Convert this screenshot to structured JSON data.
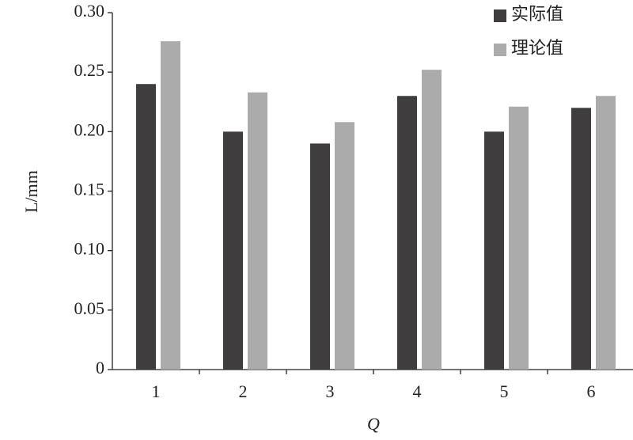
{
  "chart_data": {
    "type": "bar",
    "categories": [
      "1",
      "2",
      "3",
      "4",
      "5",
      "6"
    ],
    "series": [
      {
        "name": "实际值",
        "color": "#403d3f",
        "values": [
          0.24,
          0.2,
          0.19,
          0.23,
          0.2,
          0.22
        ]
      },
      {
        "name": "理论值",
        "color": "#ababab",
        "values": [
          0.276,
          0.233,
          0.208,
          0.252,
          0.221,
          0.23
        ]
      }
    ],
    "xlabel": "Q",
    "ylabel": "L/mm",
    "ylim": [
      0,
      0.3
    ],
    "yticks": [
      0,
      0.05,
      {
        "value": 0.1,
        "label": "0.10"
      },
      0.15,
      {
        "value": 0.2,
        "label": "0.20"
      },
      0.25,
      {
        "value": 0.3,
        "label": "0.30"
      }
    ],
    "legend": "upper-right"
  }
}
